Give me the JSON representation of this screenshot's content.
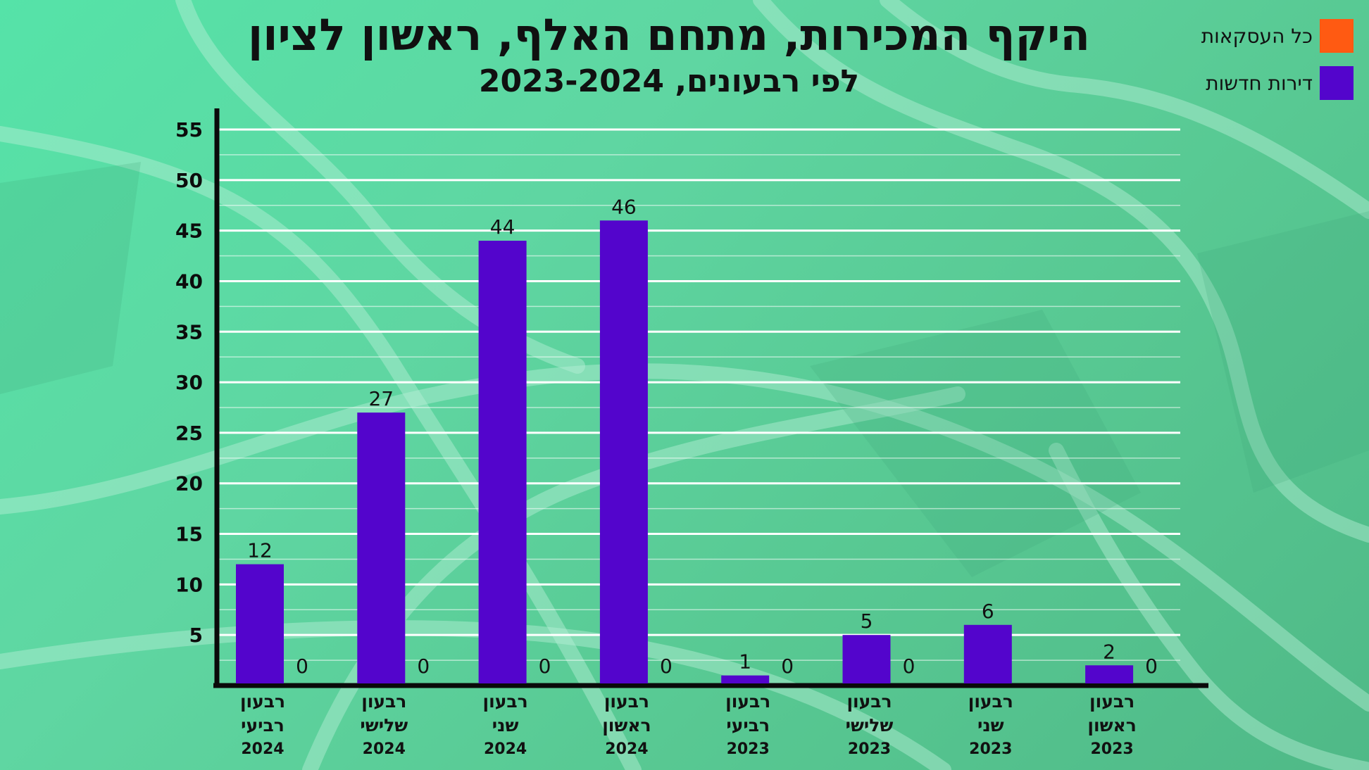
{
  "chart_data": {
    "type": "bar",
    "title": "היקף המכירות, מתחם האלף, ראשון לציון",
    "subtitle": "לפי רבעונים, 2023-2024",
    "categories": [
      {
        "line1": "רבעון",
        "line2": "רביעי",
        "year": "2024"
      },
      {
        "line1": "רבעון",
        "line2": "שלישי",
        "year": "2024"
      },
      {
        "line1": "רבעון",
        "line2": "שני",
        "year": "2024"
      },
      {
        "line1": "רבעון",
        "line2": "ראשון",
        "year": "2024"
      },
      {
        "line1": "רבעון",
        "line2": "רביעי",
        "year": "2023"
      },
      {
        "line1": "רבעון",
        "line2": "שלישי",
        "year": "2023"
      },
      {
        "line1": "רבעון",
        "line2": "שני",
        "year": "2023"
      },
      {
        "line1": "רבעון",
        "line2": "ראשון",
        "year": "2023"
      }
    ],
    "series": [
      {
        "name": "דירות חדשות",
        "color": "#5305cc",
        "values": [
          12,
          27,
          44,
          46,
          1,
          5,
          6,
          2
        ],
        "labels": [
          "12",
          "27",
          "44",
          "46",
          "1",
          "5",
          "6",
          "2"
        ]
      },
      {
        "name": "כל העסקאות",
        "color": "#ff5a12",
        "values": [
          0,
          0,
          0,
          0,
          0,
          0,
          null,
          0
        ],
        "labels": [
          "0",
          "0",
          "0",
          "0",
          "0",
          "0",
          "",
          "0"
        ]
      }
    ],
    "yticks": [
      5,
      10,
      15,
      20,
      25,
      30,
      35,
      40,
      45,
      50,
      55
    ],
    "ylim": [
      0,
      55
    ],
    "grid": true,
    "legend_position": "top-right"
  }
}
